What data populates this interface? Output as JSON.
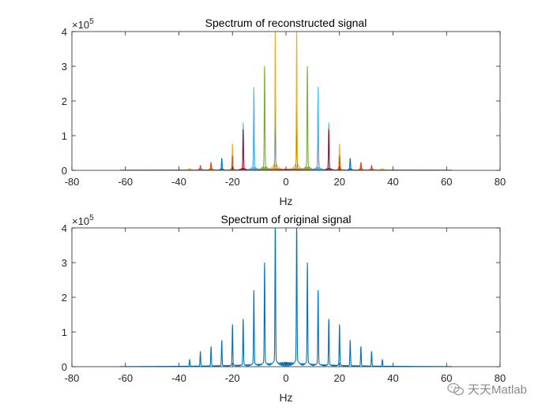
{
  "chart_data": [
    {
      "type": "line",
      "title": "Spectrum of reconstructed signal",
      "xlabel": "Hz",
      "ylabel": "",
      "xlim": [
        -80,
        80
      ],
      "ylim": [
        0,
        4
      ],
      "y_multiplier": "×10",
      "y_exponent": "5",
      "xticks": [
        "-80",
        "-60",
        "-40",
        "-20",
        "0",
        "20",
        "40",
        "60",
        "80"
      ],
      "yticks": [
        "0",
        "1",
        "2",
        "3",
        "4"
      ],
      "grid": false,
      "legend": "none",
      "base_frequency": 4,
      "support": [
        -62,
        62
      ],
      "series": [
        {
          "color": "#0072BD",
          "peaks": [
            [
              -4,
              1.8
            ],
            [
              4,
              1.8
            ],
            [
              -24,
              0.33
            ],
            [
              24,
              0.33
            ]
          ]
        },
        {
          "color": "#EDB120",
          "peaks": [
            [
              -4,
              4.0
            ],
            [
              4,
              4.0
            ],
            [
              -20,
              0.72
            ],
            [
              20,
              0.72
            ],
            [
              -36,
              0.05
            ],
            [
              36,
              0.05
            ]
          ]
        },
        {
          "color": "#77AC30",
          "peaks": [
            [
              -8,
              2.83
            ],
            [
              8,
              2.83
            ],
            [
              -28,
              0.2
            ],
            [
              28,
              0.2
            ]
          ]
        },
        {
          "color": "#7E2F8E",
          "peaks": [
            [
              -12,
              2.08
            ],
            [
              12,
              2.08
            ],
            [
              -32,
              0.12
            ],
            [
              32,
              0.12
            ]
          ]
        },
        {
          "color": "#4DBEEE",
          "peaks": [
            [
              -12,
              2.27
            ],
            [
              12,
              2.27
            ],
            [
              -16,
              1.3
            ],
            [
              16,
              1.3
            ]
          ]
        },
        {
          "color": "#A2142F",
          "peaks": [
            [
              -16,
              1.12
            ],
            [
              16,
              1.12
            ],
            [
              -28,
              0.18
            ],
            [
              28,
              0.18
            ]
          ]
        },
        {
          "color": "#D95319",
          "peaks": [
            [
              -20,
              0.4
            ],
            [
              20,
              0.4
            ],
            [
              -28,
              0.22
            ],
            [
              28,
              0.22
            ],
            [
              -32,
              0.08
            ],
            [
              32,
              0.08
            ]
          ]
        }
      ]
    },
    {
      "type": "line",
      "title": "Spectrum of original signal",
      "xlabel": "Hz",
      "ylabel": "",
      "xlim": [
        -80,
        80
      ],
      "ylim": [
        0,
        4
      ],
      "y_multiplier": "×10",
      "y_exponent": "5",
      "xticks": [
        "-80",
        "-60",
        "-40",
        "-20",
        "0",
        "20",
        "40",
        "60",
        "80"
      ],
      "yticks": [
        "0",
        "1",
        "2",
        "3",
        "4"
      ],
      "grid": false,
      "legend": "none",
      "series": [
        {
          "color": "#0072BD",
          "peaks": [
            [
              -36,
              0.2
            ],
            [
              -32,
              0.42
            ],
            [
              -28,
              0.55
            ],
            [
              -24,
              0.72
            ],
            [
              -20,
              1.15
            ],
            [
              -16,
              1.3
            ],
            [
              -12,
              2.08
            ],
            [
              -8,
              2.83
            ],
            [
              -4,
              4.0
            ],
            [
              4,
              4.0
            ],
            [
              8,
              2.83
            ],
            [
              12,
              2.08
            ],
            [
              16,
              1.3
            ],
            [
              20,
              1.15
            ],
            [
              24,
              0.72
            ],
            [
              28,
              0.55
            ],
            [
              32,
              0.42
            ],
            [
              36,
              0.2
            ]
          ],
          "support": [
            -62,
            62
          ]
        }
      ]
    }
  ],
  "watermark": {
    "icon": "wechat-icon",
    "text": "天天Matlab"
  }
}
